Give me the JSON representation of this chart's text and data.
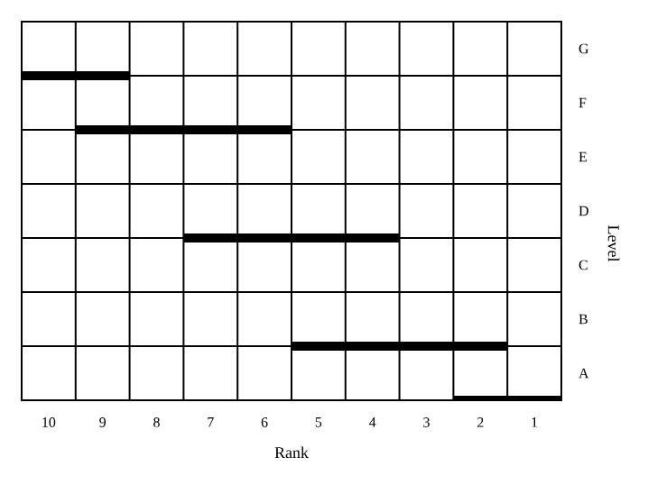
{
  "chart_data": {
    "type": "bar",
    "orientation": "horizontal",
    "xlabel": "Rank",
    "ylabel": "Level",
    "categories": [
      "G",
      "F",
      "E",
      "D",
      "C",
      "B",
      "A"
    ],
    "base": [
      8.5,
      5.5,
      null,
      3.5,
      null,
      1.5,
      0.5
    ],
    "values": [
      2,
      4,
      null,
      4,
      null,
      4,
      2
    ],
    "color": "#000000",
    "xlim": [
      10.5,
      0.5
    ],
    "xticks": [
      10,
      9,
      8,
      7,
      6,
      5,
      4,
      3,
      2,
      1
    ],
    "grid": true
  }
}
